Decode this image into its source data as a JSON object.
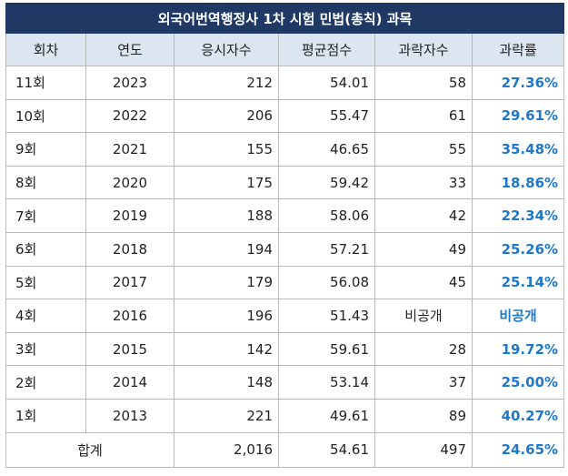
{
  "title": "외국어번역행정사 1차 시험 민법(총칙) 과목",
  "columns": [
    "회차",
    "연도",
    "응시자수",
    "평균점수",
    "과락자수",
    "과락률"
  ],
  "rows": [
    {
      "round": "11회",
      "year": "2023",
      "examinees": "212",
      "avg": "54.01",
      "fails": "58",
      "rate": "27.36%"
    },
    {
      "round": "10회",
      "year": "2022",
      "examinees": "206",
      "avg": "55.47",
      "fails": "61",
      "rate": "29.61%"
    },
    {
      "round": "9회",
      "year": "2021",
      "examinees": "155",
      "avg": "46.65",
      "fails": "55",
      "rate": "35.48%"
    },
    {
      "round": "8회",
      "year": "2020",
      "examinees": "175",
      "avg": "59.42",
      "fails": "33",
      "rate": "18.86%"
    },
    {
      "round": "7회",
      "year": "2019",
      "examinees": "188",
      "avg": "58.06",
      "fails": "42",
      "rate": "22.34%"
    },
    {
      "round": "6회",
      "year": "2018",
      "examinees": "194",
      "avg": "57.21",
      "fails": "49",
      "rate": "25.26%"
    },
    {
      "round": "5회",
      "year": "2017",
      "examinees": "179",
      "avg": "56.08",
      "fails": "45",
      "rate": "25.14%"
    },
    {
      "round": "4회",
      "year": "2016",
      "examinees": "196",
      "avg": "51.43",
      "fails": "비공개",
      "rate": "비공개"
    },
    {
      "round": "3회",
      "year": "2015",
      "examinees": "142",
      "avg": "59.61",
      "fails": "28",
      "rate": "19.72%"
    },
    {
      "round": "2회",
      "year": "2014",
      "examinees": "148",
      "avg": "53.14",
      "fails": "37",
      "rate": "25.00%"
    },
    {
      "round": "1회",
      "year": "2013",
      "examinees": "221",
      "avg": "49.61",
      "fails": "89",
      "rate": "40.27%"
    }
  ],
  "total": {
    "label": "합계",
    "examinees": "2,016",
    "avg": "54.61",
    "fails": "497",
    "rate": "24.65%"
  },
  "colors": {
    "title_bg": "#1f3864",
    "header_bg": "#dce6f1",
    "rate_text": "#1f78c8",
    "border": "#b8b8b8"
  }
}
